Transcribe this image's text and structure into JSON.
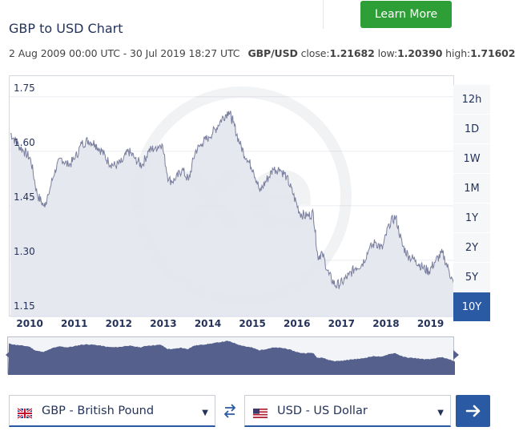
{
  "header": {
    "learn_more_label": "Learn More",
    "title": "GBP to USD Chart"
  },
  "info": {
    "range": "2 Aug 2009 00:00 UTC - 30 Jul 2019 18:27 UTC",
    "pair": "GBP/USD",
    "close_label": "close:",
    "close_value": "1.21682",
    "low_label": "low:",
    "low_value": "1.20390",
    "high_label": "high:",
    "high_value": "1.71602"
  },
  "colors": {
    "accent": "#2a5aa4",
    "button_green": "#2e9e36",
    "line": "#7a7f9e",
    "area": "#e3e5ee",
    "navigator_fill": "#55618c"
  },
  "chart_data": {
    "type": "area",
    "title": "",
    "xlabel": "",
    "ylabel": "",
    "y_ticks": [
      "1.75",
      "1.60",
      "1.45",
      "1.30",
      "1.15"
    ],
    "x_ticks": [
      "2010",
      "2011",
      "2012",
      "2013",
      "2014",
      "2015",
      "2016",
      "2017",
      "2018",
      "2019"
    ],
    "ylim": [
      1.15,
      1.8
    ],
    "grid": true,
    "series": [
      {
        "x": [
          2009.6,
          2009.75,
          2009.9,
          2010.05,
          2010.2,
          2010.35,
          2010.45,
          2010.6,
          2010.75,
          2010.9,
          2011.05,
          2011.2,
          2011.35,
          2011.5,
          2011.65,
          2011.8,
          2011.95,
          2012.1,
          2012.25,
          2012.4,
          2012.55,
          2012.7,
          2012.85,
          2013.0,
          2013.15,
          2013.3,
          2013.45,
          2013.6,
          2013.75,
          2013.9,
          2014.05,
          2014.2,
          2014.35,
          2014.5,
          2014.6,
          2014.75,
          2014.9,
          2015.05,
          2015.2,
          2015.35,
          2015.5,
          2015.65,
          2015.8,
          2015.95,
          2016.1,
          2016.25,
          2016.4,
          2016.5,
          2016.6,
          2016.75,
          2016.9,
          2017.05,
          2017.2,
          2017.35,
          2017.5,
          2017.65,
          2017.8,
          2017.95,
          2018.1,
          2018.25,
          2018.4,
          2018.55,
          2018.7,
          2018.85,
          2019.0,
          2019.15,
          2019.3,
          2019.45,
          2019.58
        ],
        "values": [
          1.65,
          1.62,
          1.6,
          1.58,
          1.48,
          1.45,
          1.48,
          1.55,
          1.58,
          1.56,
          1.58,
          1.62,
          1.63,
          1.62,
          1.6,
          1.57,
          1.56,
          1.57,
          1.6,
          1.58,
          1.56,
          1.6,
          1.61,
          1.62,
          1.52,
          1.52,
          1.55,
          1.52,
          1.6,
          1.62,
          1.64,
          1.66,
          1.69,
          1.71,
          1.68,
          1.62,
          1.58,
          1.55,
          1.49,
          1.52,
          1.55,
          1.55,
          1.53,
          1.48,
          1.43,
          1.42,
          1.43,
          1.31,
          1.32,
          1.26,
          1.23,
          1.24,
          1.26,
          1.28,
          1.29,
          1.33,
          1.35,
          1.33,
          1.4,
          1.42,
          1.34,
          1.31,
          1.3,
          1.28,
          1.27,
          1.3,
          1.32,
          1.27,
          1.22
        ]
      }
    ]
  },
  "range_buttons": [
    "12h",
    "1D",
    "1W",
    "1M",
    "1Y",
    "2Y",
    "5Y",
    "10Y"
  ],
  "range_active": "10Y",
  "from_currency": {
    "label": "GBP - British Pound",
    "flag_icon": "uk-flag-icon"
  },
  "to_currency": {
    "label": "USD - US Dollar",
    "flag_icon": "us-flag-icon"
  }
}
